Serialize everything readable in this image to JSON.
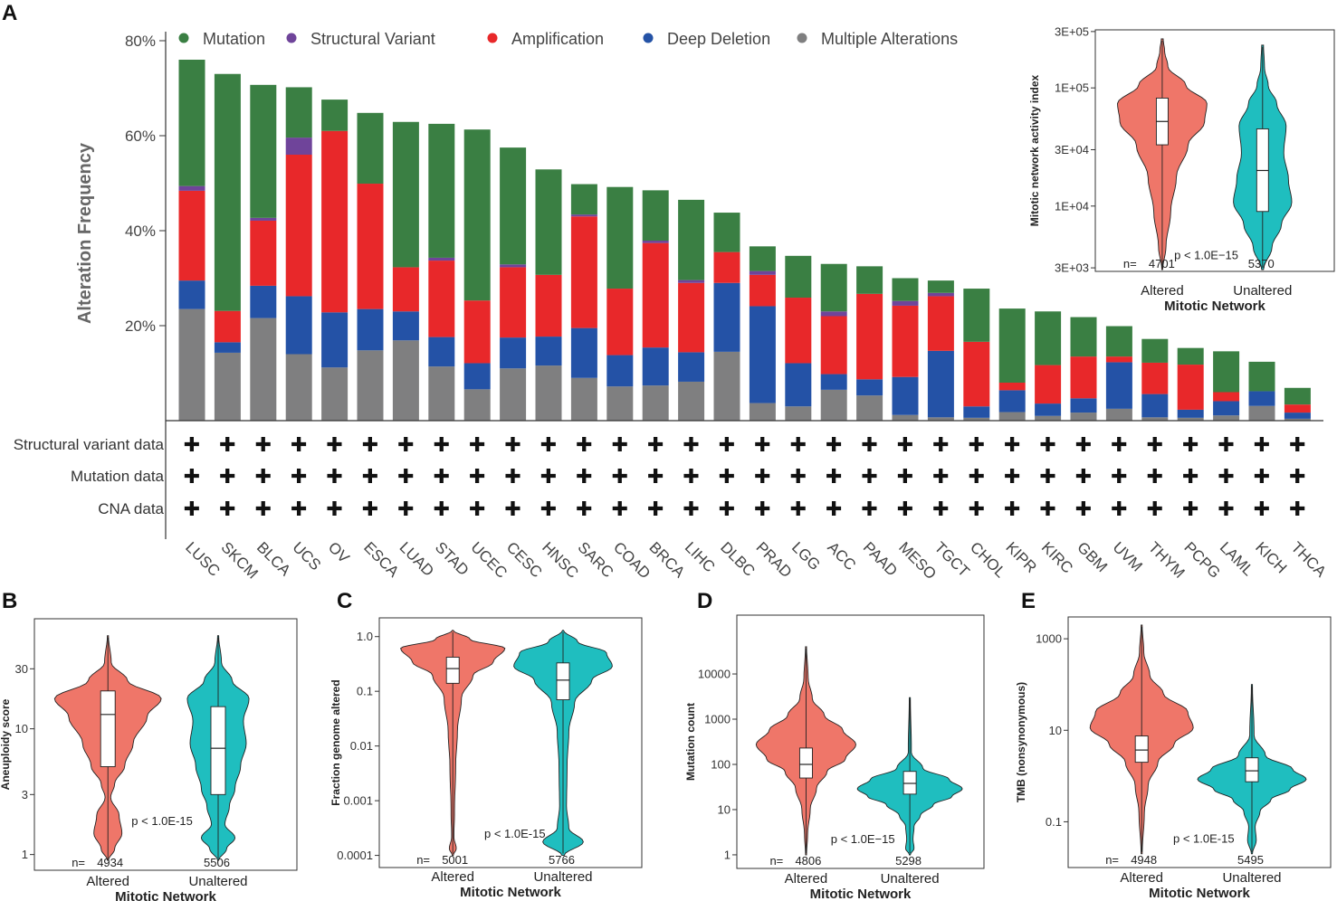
{
  "colors": {
    "mutation": "#3a7f43",
    "structural_variant": "#6f449a",
    "amplification": "#e8282a",
    "deep_deletion": "#2452a6",
    "multiple": "#7f7f80",
    "altered": "#ef7669",
    "unaltered": "#1fbebf"
  },
  "chart_data": [
    {
      "id": "A",
      "panel_label": "A",
      "type": "bar",
      "stacked": true,
      "ylabel": "Alteration Frequency",
      "ylim": [
        0,
        80
      ],
      "yticks": [
        20,
        40,
        60,
        80
      ],
      "ytick_labels": [
        "20%",
        "40%",
        "60%",
        "80%"
      ],
      "legend_position": "top",
      "categories": [
        "LUSC",
        "SKCM",
        "BLCA",
        "UCS",
        "OV",
        "ESCA",
        "LUAD",
        "STAD",
        "UCEC",
        "CESC",
        "HNSC",
        "SARC",
        "COAD",
        "BRCA",
        "LIHC",
        "DLBC",
        "PRAD",
        "LGG",
        "ACC",
        "PAAD",
        "MESO",
        "TGCT",
        "CHOL",
        "KIPR",
        "KIRC",
        "GBM",
        "UVM",
        "THYM",
        "PCPG",
        "LAML",
        "KICH",
        "THCA"
      ],
      "series": [
        {
          "name": "Multiple Alterations",
          "key": "multiple",
          "values": [
            23.5,
            14.3,
            21.6,
            14.0,
            11.2,
            14.8,
            16.9,
            11.4,
            6.6,
            11.0,
            11.6,
            9.0,
            7.2,
            7.4,
            8.2,
            14.5,
            3.7,
            3.0,
            6.5,
            5.3,
            1.2,
            0.7,
            0.6,
            1.8,
            1.0,
            1.7,
            2.5,
            0.7,
            0.6,
            1.1,
            3.1,
            0.4
          ]
        },
        {
          "name": "Deep Deletion",
          "key": "deep_deletion",
          "values": [
            6.0,
            2.2,
            6.8,
            12.2,
            11.6,
            8.7,
            6.1,
            6.2,
            5.5,
            6.5,
            6.1,
            10.5,
            6.6,
            8.0,
            6.2,
            14.5,
            20.4,
            9.1,
            3.3,
            3.4,
            8.0,
            14.0,
            2.4,
            4.6,
            2.6,
            3.0,
            9.8,
            4.9,
            1.7,
            3.0,
            3.1,
            1.3
          ]
        },
        {
          "name": "Amplification",
          "key": "amplification",
          "values": [
            18.9,
            6.6,
            13.7,
            29.8,
            38.2,
            26.4,
            9.3,
            16.1,
            13.2,
            14.8,
            13.0,
            23.5,
            14.0,
            22.0,
            14.6,
            6.5,
            6.6,
            13.8,
            12.2,
            18.0,
            15.0,
            11.5,
            13.6,
            1.6,
            8.1,
            8.8,
            1.2,
            6.6,
            9.5,
            1.9,
            0.0,
            1.7
          ]
        },
        {
          "name": "Structural Variant",
          "key": "structural_variant",
          "values": [
            1.0,
            0.0,
            0.6,
            3.6,
            0.0,
            0.0,
            0.0,
            0.6,
            0.0,
            0.6,
            0.0,
            0.4,
            0.0,
            0.5,
            0.6,
            0.0,
            0.8,
            0.0,
            1.0,
            0.0,
            1.0,
            0.7,
            0.0,
            0.0,
            0.0,
            0.0,
            0.0,
            0.0,
            0.0,
            0.0,
            0.0,
            0.0
          ]
        },
        {
          "name": "Mutation",
          "key": "mutation",
          "values": [
            26.6,
            49.9,
            28.0,
            10.6,
            6.6,
            14.9,
            30.6,
            28.2,
            36.0,
            24.6,
            22.2,
            6.4,
            21.4,
            10.6,
            16.9,
            8.3,
            5.2,
            8.8,
            10.0,
            5.8,
            4.8,
            2.6,
            11.2,
            15.6,
            11.3,
            8.3,
            6.4,
            5.0,
            3.5,
            8.6,
            6.2,
            3.5
          ]
        }
      ],
      "legend": [
        "Mutation",
        "Structural Variant",
        "Amplification",
        "Deep Deletion",
        "Multiple Alterations"
      ],
      "data_rows": [
        "Structural variant data",
        "Mutation data",
        "CNA data"
      ],
      "data_row_marker": "✚"
    },
    {
      "id": "A_inset",
      "type": "violin",
      "ylabel": "Mitotic network activity index",
      "xlabel": "Mitotic Network",
      "yscale": "log",
      "ylim": [
        2800,
        310000
      ],
      "yticks": [
        3000,
        10000,
        30000,
        100000,
        300000
      ],
      "ytick_labels": [
        "3E+03",
        "1E+04",
        "3E+04",
        "1E+05",
        "3E+05"
      ],
      "groups": [
        "Altered",
        "Unaltered"
      ],
      "n": [
        "4701",
        "5370"
      ],
      "n_prefix": "n=",
      "pvalue": "p < 1.0E−15",
      "box": [
        {
          "group": "Altered",
          "q1": 33000,
          "median": 52000,
          "q3": 82000,
          "min": 2900,
          "max": 260000
        },
        {
          "group": "Unaltered",
          "q1": 9000,
          "median": 20000,
          "q3": 45000,
          "min": 2900,
          "max": 230000
        }
      ]
    },
    {
      "id": "B",
      "panel_label": "B",
      "type": "violin",
      "ylabel": "Aneuploidy score",
      "xlabel": "Mitotic Network",
      "yscale": "log",
      "ylim": [
        0.75,
        75
      ],
      "yticks": [
        1,
        3,
        10,
        30
      ],
      "ytick_labels": [
        "1",
        "3",
        "10",
        "30"
      ],
      "groups": [
        "Altered",
        "Unaltered"
      ],
      "n": [
        "4934",
        "5506"
      ],
      "n_prefix": "n=",
      "pvalue": "p < 1.0E-15",
      "box": [
        {
          "group": "Altered",
          "q1": 5,
          "median": 13,
          "q3": 20,
          "min": 0.9,
          "max": 55
        },
        {
          "group": "Unaltered",
          "q1": 3,
          "median": 7,
          "q3": 15,
          "min": 0.9,
          "max": 55
        }
      ]
    },
    {
      "id": "C",
      "panel_label": "C",
      "type": "violin",
      "ylabel": "Fraction genome altered",
      "xlabel": "Mitotic Network",
      "yscale": "log",
      "ylim": [
        6e-05,
        2.2
      ],
      "yticks": [
        0.0001,
        0.001,
        0.01,
        0.1,
        1.0
      ],
      "ytick_labels": [
        "0.0001",
        "0.001",
        "0.01",
        "0.1",
        "1.0"
      ],
      "groups": [
        "Altered",
        "Unaltered"
      ],
      "n": [
        "5001",
        "5766"
      ],
      "n_prefix": "n=",
      "pvalue": "p < 1.0E-15",
      "box": [
        {
          "group": "Altered",
          "q1": 0.14,
          "median": 0.26,
          "q3": 0.42,
          "min": 0.0001,
          "max": 1.3
        },
        {
          "group": "Unaltered",
          "q1": 0.07,
          "median": 0.16,
          "q3": 0.33,
          "min": 0.0001,
          "max": 1.3
        }
      ]
    },
    {
      "id": "D",
      "panel_label": "D",
      "type": "violin",
      "ylabel": "Mutation count",
      "xlabel": "Mitotic Network",
      "yscale": "log",
      "ylim": [
        0.5,
        200000
      ],
      "yticks": [
        1,
        10,
        100,
        1000,
        10000
      ],
      "ytick_labels": [
        "1",
        "10",
        "100",
        "1000",
        "10000"
      ],
      "groups": [
        "Altered",
        "Unaltered"
      ],
      "n": [
        "4806",
        "5298"
      ],
      "n_prefix": "n=",
      "pvalue": "p < 1.0E−15",
      "box": [
        {
          "group": "Altered",
          "q1": 50,
          "median": 100,
          "q3": 230,
          "min": 1,
          "max": 40000
        },
        {
          "group": "Unaltered",
          "q1": 22,
          "median": 38,
          "q3": 70,
          "min": 1,
          "max": 3000
        }
      ]
    },
    {
      "id": "E",
      "panel_label": "E",
      "type": "violin",
      "ylabel": "TMB (nonsynonymous)",
      "xlabel": "Mitotic Network",
      "yscale": "log",
      "ylim": [
        0.01,
        3000
      ],
      "yticks": [
        0.1,
        10,
        1000
      ],
      "ytick_labels": [
        "0.1",
        "10",
        "1000"
      ],
      "groups": [
        "Altered",
        "Unaltered"
      ],
      "n": [
        "4948",
        "5495"
      ],
      "n_prefix": "n=",
      "pvalue": "p < 1.0E-15",
      "box": [
        {
          "group": "Altered",
          "q1": 2.0,
          "median": 3.7,
          "q3": 7.5,
          "min": 0.02,
          "max": 2000
        },
        {
          "group": "Unaltered",
          "q1": 0.75,
          "median": 1.3,
          "q3": 2.5,
          "min": 0.02,
          "max": 100
        }
      ]
    }
  ]
}
